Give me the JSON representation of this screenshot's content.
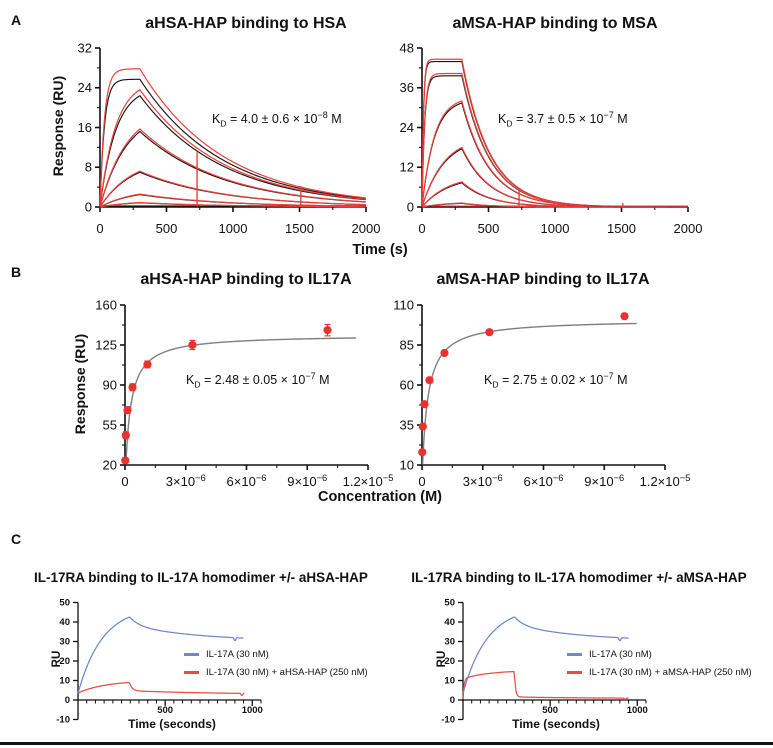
{
  "figure": {
    "panels": {
      "a": "A",
      "b": "B",
      "c": "C"
    },
    "labels": {
      "time_s": "Time (s)",
      "conc": "Concentration (M)"
    }
  },
  "chart_data": [
    {
      "id": "a-left",
      "type": "line",
      "subtype": "sensorgram",
      "title": "aHSA-HAP binding to HSA",
      "ylabel": "Response (RU)",
      "xlim": [
        0,
        2000
      ],
      "ylim": [
        0,
        32
      ],
      "xticks": [
        {
          "v": 0,
          "l": "0"
        },
        {
          "v": 500,
          "l": "500"
        },
        {
          "v": 1000,
          "l": "1000"
        },
        {
          "v": 1500,
          "l": "1500"
        },
        {
          "v": 2000,
          "l": "2000"
        }
      ],
      "xminor": [
        250,
        750,
        1250,
        1750
      ],
      "yticks": [
        {
          "v": 0,
          "l": "0"
        },
        {
          "v": 8,
          "l": "8"
        },
        {
          "v": 16,
          "l": "16"
        },
        {
          "v": 24,
          "l": "24"
        },
        {
          "v": 32,
          "l": "32"
        }
      ],
      "yminor": [
        4,
        12,
        20,
        28
      ],
      "kd": {
        "k": "K",
        "sub": "D",
        "body": " = 4.0 ± 0.6 × 10",
        "exp": "−8",
        "unit": " M"
      },
      "t_on": 300,
      "t_end": 2000,
      "series": [
        {
          "peak": 27.8,
          "fit_peak": 25.7,
          "kobs": 0.03,
          "kd": 0.0016
        },
        {
          "peak": 23.6,
          "fit_peak": 22.4,
          "kobs": 0.0085,
          "kd": 0.0016
        },
        {
          "peak": 15.7,
          "fit_peak": 15.2,
          "kobs": 0.005,
          "kd": 0.0016
        },
        {
          "peak": 7.2,
          "fit_peak": 7.0,
          "kobs": 0.0042,
          "kd": 0.0016
        },
        {
          "peak": 2.6,
          "fit_peak": 2.5,
          "kobs": 0.004,
          "kd": 0.0016
        },
        {
          "peak": 0.9,
          "fit_peak": 0.85,
          "kobs": 0.004,
          "kd": 0.0016
        }
      ],
      "baseline": 0.3,
      "spikes": [
        {
          "t": 730,
          "h": 11
        },
        {
          "t": 1510,
          "h": 4.2
        }
      ],
      "colors": {
        "data": "#ee3f3a",
        "fit": "#161616"
      }
    },
    {
      "id": "a-right",
      "type": "line",
      "subtype": "sensorgram",
      "title": "aMSA-HAP binding to MSA",
      "xlim": [
        0,
        2000
      ],
      "ylim": [
        0,
        48
      ],
      "xticks": [
        {
          "v": 0,
          "l": "0"
        },
        {
          "v": 500,
          "l": "500"
        },
        {
          "v": 1000,
          "l": "1000"
        },
        {
          "v": 1500,
          "l": "1500"
        },
        {
          "v": 2000,
          "l": "2000"
        }
      ],
      "xminor": [
        250,
        750,
        1250,
        1750
      ],
      "yticks": [
        {
          "v": 0,
          "l": "0"
        },
        {
          "v": 12,
          "l": "12"
        },
        {
          "v": 24,
          "l": "24"
        },
        {
          "v": 36,
          "l": "36"
        },
        {
          "v": 48,
          "l": "48"
        }
      ],
      "yminor": [
        6,
        18,
        30,
        42
      ],
      "kd": {
        "k": "K",
        "sub": "D",
        "body": " = 3.7 ± 0.5 × 10",
        "exp": "−7",
        "unit": " M"
      },
      "t_on": 300,
      "t_end": 2000,
      "series": [
        {
          "peak": 44.6,
          "fit_peak": 43.9,
          "kobs": 0.09,
          "kd": 0.0048
        },
        {
          "peak": 40.3,
          "fit_peak": 39.6,
          "kobs": 0.05,
          "kd": 0.0048
        },
        {
          "peak": 32.0,
          "fit_peak": 31.4,
          "kobs": 0.011,
          "kd": 0.0048
        },
        {
          "peak": 18.0,
          "fit_peak": 17.6,
          "kobs": 0.006,
          "kd": 0.0048
        },
        {
          "peak": 7.6,
          "fit_peak": 7.3,
          "kobs": 0.005,
          "kd": 0.0048
        },
        {
          "peak": 1.2,
          "fit_peak": 1.1,
          "kobs": 0.005,
          "kd": 0.0048
        }
      ],
      "baseline": 0.3,
      "spikes": [
        {
          "t": 730,
          "h": 5
        },
        {
          "t": 1510,
          "h": 1.2
        }
      ],
      "colors": {
        "data": "#ee3f3a",
        "fit": "#161616"
      }
    },
    {
      "id": "b-left",
      "type": "scatter",
      "subtype": "isotherm",
      "title": "aHSA-HAP binding to IL17A",
      "ylabel": "Response (RU)",
      "xlim": [
        0,
        1.2e-05
      ],
      "ylim": [
        20,
        160
      ],
      "xticks": [
        {
          "v": 0,
          "l": "0"
        },
        {
          "v": 3e-06,
          "l": "3×10",
          "exp": "−6"
        },
        {
          "v": 6e-06,
          "l": "6×10",
          "exp": "−6"
        },
        {
          "v": 9e-06,
          "l": "9×10",
          "exp": "−6"
        },
        {
          "v": 1.2e-05,
          "l": "1.2×10",
          "exp": "−5"
        }
      ],
      "xminor": [
        1.5e-06,
        4.5e-06,
        7.5e-06,
        1.05e-05
      ],
      "yticks": [
        {
          "v": 20,
          "l": "20"
        },
        {
          "v": 55,
          "l": "55"
        },
        {
          "v": 90,
          "l": "90"
        },
        {
          "v": 125,
          "l": "125"
        },
        {
          "v": 160,
          "l": "160"
        }
      ],
      "yminor": [
        37.5,
        72.5,
        107.5,
        142.5
      ],
      "kd": {
        "k": "K",
        "sub": "D",
        "body": " = 2.48 ± 0.05 × 10",
        "exp": "−7",
        "unit": " M"
      },
      "points": {
        "x": [
          1.4e-08,
          4.1e-08,
          1.23e-07,
          3.7e-07,
          1.11e-06,
          3.33e-06,
          1e-05
        ],
        "y": [
          24,
          46,
          68,
          88,
          108,
          125,
          138
        ],
        "err": [
          2,
          3,
          3,
          3,
          3,
          4,
          5
        ]
      },
      "fit": {
        "rmax": 134,
        "kd": 2.48e-07,
        "x_end": 1.14e-05
      },
      "colors": {
        "points": "#e8322d",
        "fit": "#7f7f7f"
      }
    },
    {
      "id": "b-right",
      "type": "scatter",
      "subtype": "isotherm",
      "title": "aMSA-HAP binding to IL17A",
      "xlim": [
        0,
        1.2e-05
      ],
      "ylim": [
        10,
        110
      ],
      "xticks": [
        {
          "v": 0,
          "l": "0"
        },
        {
          "v": 3e-06,
          "l": "3×10",
          "exp": "−6"
        },
        {
          "v": 6e-06,
          "l": "6×10",
          "exp": "−6"
        },
        {
          "v": 9e-06,
          "l": "9×10",
          "exp": "−6"
        },
        {
          "v": 1.2e-05,
          "l": "1.2×10",
          "exp": "−5"
        }
      ],
      "xminor": [
        1.5e-06,
        4.5e-06,
        7.5e-06,
        1.05e-05
      ],
      "yticks": [
        {
          "v": 10,
          "l": "10"
        },
        {
          "v": 35,
          "l": "35"
        },
        {
          "v": 60,
          "l": "60"
        },
        {
          "v": 85,
          "l": "85"
        },
        {
          "v": 110,
          "l": "110"
        }
      ],
      "yminor": [
        22.5,
        47.5,
        72.5,
        97.5
      ],
      "kd": {
        "k": "K",
        "sub": "D",
        "body": " = 2.75 ± 0.02 × 10",
        "exp": "−7",
        "unit": " M"
      },
      "points": {
        "x": [
          1.4e-08,
          4.1e-08,
          1.23e-07,
          3.7e-07,
          1.11e-06,
          3.33e-06,
          1e-05
        ],
        "y": [
          18,
          34,
          48,
          63,
          80,
          93,
          103
        ],
        "err": [
          0,
          0,
          0,
          0,
          0,
          0,
          0
        ]
      },
      "fit": {
        "rmax": 101,
        "kd": 2.75e-07,
        "x_end": 1.06e-05
      },
      "colors": {
        "points": "#e8322d",
        "fit": "#7f7f7f"
      }
    },
    {
      "id": "c-left",
      "type": "line",
      "subtype": "overlay",
      "title": "IL-17RA binding to IL-17A homodimer +/- aHSA-HAP",
      "ylabel": "RU",
      "xlabel": "Time (seconds)",
      "xlim": [
        0,
        1050
      ],
      "ylim": [
        -10,
        50
      ],
      "xticks": [
        {
          "v": 500,
          "l": "500"
        },
        {
          "v": 1000,
          "l": "1000"
        }
      ],
      "xminor_step": 50,
      "yticks": [
        {
          "v": -10,
          "l": "-10"
        },
        {
          "v": 0,
          "l": "0"
        },
        {
          "v": 10,
          "l": "10"
        },
        {
          "v": 20,
          "l": "20"
        },
        {
          "v": 30,
          "l": "30"
        },
        {
          "v": 40,
          "l": "40"
        },
        {
          "v": 50,
          "l": "50"
        }
      ],
      "series": [
        {
          "label": "IL-17A (30 nM)",
          "color": "#7189cb",
          "assoc": {
            "r0": 3.5,
            "a1": 44.5,
            "tau1": 140,
            "a2": 0,
            "tau2": 1
          },
          "t_off": 295,
          "t_end": 950,
          "diss": {
            "base": 30.0,
            "s": 8.2,
            "stau": 420,
            "f": 4.5,
            "ftau": 55
          },
          "blip": {
            "t": 900,
            "d": 1.8
          }
        },
        {
          "label": "IL-17A (30 nM) + aHSA-HAP (250 nM)",
          "color": "#ee4a45",
          "assoc": {
            "r0": 3.6,
            "a1": 6.4,
            "tau1": 160,
            "a2": 0,
            "tau2": 1
          },
          "t_off": 295,
          "t_end": 955,
          "diss": {
            "base": 2.9,
            "s": 1.9,
            "stau": 480,
            "f": 4.4,
            "ftau": 14
          },
          "blip": {
            "t": 940,
            "d": 1.2
          }
        }
      ]
    },
    {
      "id": "c-right",
      "type": "line",
      "subtype": "overlay",
      "title": "IL-17RA binding to IL-17A homodimer +/- aMSA-HAP",
      "ylabel": "RU",
      "xlabel": "Time (seconds)",
      "xlim": [
        0,
        1050
      ],
      "ylim": [
        -10,
        50
      ],
      "xticks": [
        {
          "v": 500,
          "l": "500"
        },
        {
          "v": 1000,
          "l": "1000"
        }
      ],
      "xminor_step": 50,
      "yticks": [
        {
          "v": -10,
          "l": "-10"
        },
        {
          "v": 0,
          "l": "0"
        },
        {
          "v": 10,
          "l": "10"
        },
        {
          "v": 20,
          "l": "20"
        },
        {
          "v": 30,
          "l": "30"
        },
        {
          "v": 40,
          "l": "40"
        },
        {
          "v": 50,
          "l": "50"
        }
      ],
      "series": [
        {
          "label": "IL-17A (30 nM)",
          "color": "#7189cb",
          "assoc": {
            "r0": 3.5,
            "a1": 44.5,
            "tau1": 140,
            "a2": 0,
            "tau2": 1
          },
          "t_off": 295,
          "t_end": 950,
          "diss": {
            "base": 30.0,
            "s": 8.2,
            "stau": 420,
            "f": 4.5,
            "ftau": 55
          },
          "blip": {
            "t": 900,
            "d": 1.8
          }
        },
        {
          "label": "IL-17A (30 nM) +  aMSA-HAP (250 nM)",
          "color": "#ee4a45",
          "assoc": {
            "r0": 0.5,
            "a1": 10.4,
            "tau1": 6,
            "a2": 4.3,
            "tau2": 150
          },
          "t_off": 295,
          "t_end": 950,
          "diss": {
            "base": 0.85,
            "s": 0.75,
            "stau": 350,
            "f": 13.2,
            "ftau": 6.5
          },
          "blip": {
            "t": 930,
            "d": 0.7
          }
        }
      ]
    }
  ]
}
